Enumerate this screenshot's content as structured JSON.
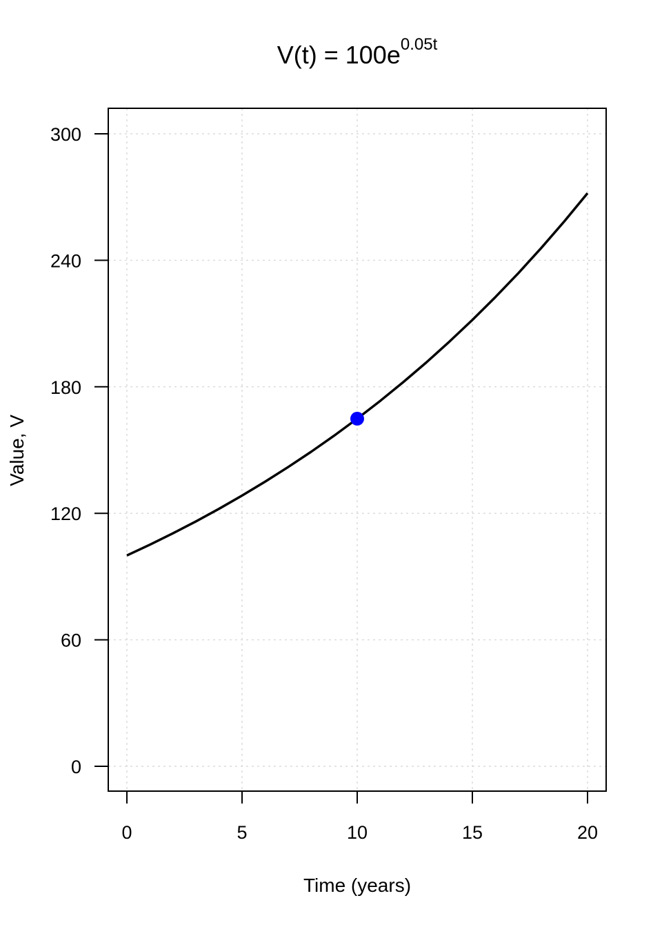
{
  "chart_data": {
    "type": "line",
    "title_parts": {
      "lhs": "V(t) = 100e",
      "exponent": "0.05t"
    },
    "xlabel": "Time (years)",
    "ylabel": "Value, V",
    "xlim": [
      0,
      20
    ],
    "ylim": [
      0,
      300
    ],
    "x_ticks": [
      0,
      5,
      10,
      15,
      20
    ],
    "y_ticks": [
      0,
      60,
      120,
      180,
      240,
      300
    ],
    "x_tick_labels": [
      "0",
      "5",
      "10",
      "15",
      "20"
    ],
    "y_tick_labels": [
      "0",
      "60",
      "120",
      "180",
      "240",
      "300"
    ],
    "grid": true,
    "series": [
      {
        "x": [
          0,
          1,
          2,
          3,
          4,
          5,
          6,
          7,
          8,
          9,
          10,
          11,
          12,
          13,
          14,
          15,
          16,
          17,
          18,
          19,
          20
        ],
        "y": [
          100.0,
          105.13,
          110.52,
          116.18,
          122.14,
          128.4,
          134.99,
          141.91,
          149.18,
          156.83,
          164.87,
          173.33,
          182.21,
          191.55,
          201.38,
          211.7,
          222.55,
          233.96,
          245.96,
          258.57,
          271.83
        ],
        "color": "#000000"
      }
    ],
    "highlight_point": {
      "x": 10,
      "y": 164.87,
      "color": "#0000ff"
    }
  }
}
